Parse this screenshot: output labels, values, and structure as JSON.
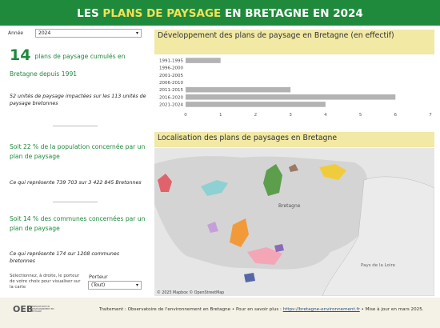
{
  "header": {
    "title_parts": [
      "LES ",
      "PLANS DE PAYSAGE",
      " EN BRETAGNE EN 2024"
    ]
  },
  "filters": {
    "year_label": "Année",
    "year_value": "2024",
    "porteur_hint": "Sélectionnez, à droite, le porteur de votre choix pour visualiser sur la carte",
    "porteur_label": "Porteur",
    "porteur_value": "(Tout)"
  },
  "kpis": {
    "count": "14",
    "count_text": "plans de paysage cumulés en Bretagne depuis 1991",
    "units_text": "52 unités de paysage impactées sur les 113 unités de paysage bretonnes",
    "population_text": "Soit 22 % de la population concernée par un plan de paysage",
    "population_detail": "Ce qui représente 739 703 sur 3 422 845 Bretonnes",
    "communes_text": "Soit 14 % des communes concernées par un plan de paysage",
    "communes_detail": "Ce qui représente 174 sur 1208 communes bretonnes"
  },
  "chart_data": {
    "type": "hbar",
    "title": "Développement des plans de paysage en Bretagne (en effectif)",
    "categories": [
      "1991-1995",
      "1996-2000",
      "2001-2005",
      "2006-2010",
      "2011-2015",
      "2016-2020",
      "2021-2024"
    ],
    "values": [
      1,
      0,
      0,
      0,
      3,
      6,
      4
    ],
    "color": "#b3b3b3",
    "xlim": [
      0,
      7
    ],
    "xticks": [
      0,
      1,
      2,
      3,
      4,
      5,
      6,
      7
    ],
    "grid": false
  },
  "map": {
    "title": "Localisation des plans de paysages en Bretagne",
    "region_label": "Bretagne",
    "neighbor_label": "Pays de la Loire",
    "attribution": "© 2025 Mapbox © OpenStreetMap"
  },
  "footer": {
    "logo": "OEB",
    "logo_caption": "OBSERVATOIRE DE L'ENVIRONNEMENT EN BRETAGNE",
    "text_before": "Traitement : Observatoire de l'environnement en Bretagne • Pour en savoir plus : ",
    "link": "https://bretagne-environnement.fr",
    "text_after": " • Mise à jour en mars 2025."
  }
}
